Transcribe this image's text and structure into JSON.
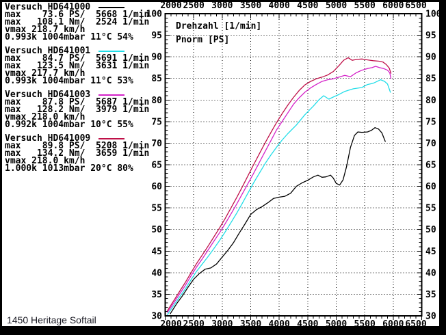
{
  "footer": {
    "label": "1450 Heritage Softail"
  },
  "panel": {
    "tests": [
      {
        "title": "Versuch HD641000",
        "color": "#000000",
        "rows": [
          "max    73.6 PS/  5668 1/min",
          "max   108.1 Nm/  2524 1/min",
          "vmax 218.7 km/h",
          "0.993k 1004mbar 11°C 54%"
        ]
      },
      {
        "title": "Versuch HD641001",
        "color": "#20dde8",
        "rows": [
          "max    84.7 PS/  5691 1/min",
          "max   123.5 Nm/  3631 1/min",
          "vmax 217.7 km/h",
          "0.993k 1004mbar 11°C 53%"
        ]
      },
      {
        "title": "Versuch HD641003",
        "color": "#d420c8",
        "rows": [
          "max    87.8 PS/  5687 1/min",
          "max   128.2 Nm/  3979 1/min",
          "vmax 218.0 km/h",
          "0.992k 1004mbar 10°C 55%"
        ]
      },
      {
        "title": "Versuch HD641009",
        "color": "#bf1048",
        "rows": [
          "max    89.8 PS/  5208 1/min",
          "max   134.2 Nm/  3659 1/min",
          "vmax 218.0 km/h",
          "1.000k 1013mbar 20°C 80%"
        ]
      }
    ]
  },
  "chart_data": {
    "type": "line",
    "title": "",
    "xlabel": "Drehzahl [1/min]",
    "ylabel": "Pnorm [PS]",
    "xlim": [
      2000,
      6500
    ],
    "ylim": [
      30,
      100
    ],
    "x_major_step": 500,
    "x_minor_step": 100,
    "y_major_step": 5,
    "y_minor_step": 1,
    "grid": "dotted-at-major-ticks",
    "x_labels_position": "top-and-bottom",
    "y_labels_position": "left-and-right",
    "legend_position": "left-text-panel",
    "series": [
      {
        "name": "HD641000",
        "color": "#000000",
        "points": [
          [
            2090,
            30.5
          ],
          [
            2200,
            32.8
          ],
          [
            2300,
            34.6
          ],
          [
            2400,
            36.6
          ],
          [
            2500,
            38.5
          ],
          [
            2600,
            39.8
          ],
          [
            2700,
            40.8
          ],
          [
            2800,
            41.1
          ],
          [
            2900,
            42
          ],
          [
            3000,
            43.6
          ],
          [
            3100,
            45.2
          ],
          [
            3200,
            47
          ],
          [
            3300,
            49.2
          ],
          [
            3400,
            51.3
          ],
          [
            3500,
            53.5
          ],
          [
            3600,
            54.6
          ],
          [
            3700,
            55.3
          ],
          [
            3800,
            56.2
          ],
          [
            3900,
            57.2
          ],
          [
            4000,
            57.5
          ],
          [
            4100,
            57.7
          ],
          [
            4200,
            58.4
          ],
          [
            4300,
            60
          ],
          [
            4400,
            60.8
          ],
          [
            4500,
            61.4
          ],
          [
            4600,
            62.2
          ],
          [
            4680,
            62.6
          ],
          [
            4750,
            62.1
          ],
          [
            4820,
            62.2
          ],
          [
            4900,
            62.6
          ],
          [
            4950,
            61.9
          ],
          [
            5000,
            60.7
          ],
          [
            5060,
            60.3
          ],
          [
            5120,
            61.5
          ],
          [
            5180,
            64.5
          ],
          [
            5250,
            69
          ],
          [
            5320,
            71.8
          ],
          [
            5380,
            72.6
          ],
          [
            5450,
            72.5
          ],
          [
            5550,
            72.6
          ],
          [
            5620,
            73
          ],
          [
            5680,
            73.6
          ],
          [
            5740,
            73.3
          ],
          [
            5800,
            72.4
          ],
          [
            5860,
            70.4
          ]
        ]
      },
      {
        "name": "HD641001",
        "color": "#20dde8",
        "points": [
          [
            2040,
            30.3
          ],
          [
            2150,
            32.4
          ],
          [
            2250,
            34.3
          ],
          [
            2350,
            36.2
          ],
          [
            2450,
            38.3
          ],
          [
            2550,
            40.3
          ],
          [
            2650,
            42
          ],
          [
            2750,
            43.7
          ],
          [
            2850,
            45.5
          ],
          [
            2950,
            47.4
          ],
          [
            3050,
            49.4
          ],
          [
            3150,
            51.5
          ],
          [
            3250,
            53.7
          ],
          [
            3350,
            56
          ],
          [
            3450,
            58.4
          ],
          [
            3550,
            60.8
          ],
          [
            3650,
            63
          ],
          [
            3750,
            65.2
          ],
          [
            3850,
            67.2
          ],
          [
            3950,
            69
          ],
          [
            4050,
            70.7
          ],
          [
            4150,
            72.2
          ],
          [
            4300,
            74.2
          ],
          [
            4450,
            76.6
          ],
          [
            4600,
            78.6
          ],
          [
            4700,
            80.1
          ],
          [
            4780,
            81
          ],
          [
            4870,
            80.2
          ],
          [
            4950,
            80.7
          ],
          [
            5050,
            81.3
          ],
          [
            5150,
            82
          ],
          [
            5300,
            82.6
          ],
          [
            5450,
            82.9
          ],
          [
            5550,
            83.6
          ],
          [
            5650,
            83.9
          ],
          [
            5700,
            84.2
          ],
          [
            5780,
            84.7
          ],
          [
            5850,
            84.3
          ],
          [
            5900,
            83.7
          ],
          [
            5950,
            81.8
          ]
        ]
      },
      {
        "name": "HD641003",
        "color": "#d420c8",
        "points": [
          [
            2040,
            30.8
          ],
          [
            2150,
            33
          ],
          [
            2250,
            35
          ],
          [
            2350,
            37
          ],
          [
            2450,
            39.2
          ],
          [
            2550,
            41.3
          ],
          [
            2650,
            43.2
          ],
          [
            2750,
            45.2
          ],
          [
            2850,
            47.2
          ],
          [
            2950,
            49.2
          ],
          [
            3050,
            51.3
          ],
          [
            3150,
            53.5
          ],
          [
            3250,
            55.8
          ],
          [
            3350,
            58.2
          ],
          [
            3450,
            60.6
          ],
          [
            3550,
            63
          ],
          [
            3650,
            65.5
          ],
          [
            3750,
            68
          ],
          [
            3850,
            70.5
          ],
          [
            3950,
            73
          ],
          [
            4050,
            75
          ],
          [
            4150,
            77
          ],
          [
            4250,
            79
          ],
          [
            4350,
            80.5
          ],
          [
            4450,
            81.8
          ],
          [
            4550,
            82.8
          ],
          [
            4650,
            83.6
          ],
          [
            4750,
            84.3
          ],
          [
            4850,
            84.7
          ],
          [
            4950,
            84.9
          ],
          [
            5050,
            85.3
          ],
          [
            5150,
            85.7
          ],
          [
            5250,
            85.4
          ],
          [
            5350,
            86.3
          ],
          [
            5450,
            86.9
          ],
          [
            5550,
            87.3
          ],
          [
            5630,
            87.5
          ],
          [
            5690,
            87.8
          ],
          [
            5760,
            87.5
          ],
          [
            5830,
            87.3
          ],
          [
            5900,
            86.9
          ],
          [
            5940,
            86.3
          ],
          [
            5960,
            85
          ]
        ]
      },
      {
        "name": "HD641009",
        "color": "#bf1048",
        "points": [
          [
            2040,
            31.2
          ],
          [
            2150,
            33.5
          ],
          [
            2250,
            35.6
          ],
          [
            2350,
            37.7
          ],
          [
            2450,
            39.9
          ],
          [
            2550,
            42.1
          ],
          [
            2650,
            44.1
          ],
          [
            2750,
            46.1
          ],
          [
            2850,
            48.2
          ],
          [
            2950,
            50.3
          ],
          [
            3050,
            52.5
          ],
          [
            3150,
            54.9
          ],
          [
            3250,
            57.3
          ],
          [
            3350,
            59.8
          ],
          [
            3450,
            62.4
          ],
          [
            3550,
            65
          ],
          [
            3650,
            67.5
          ],
          [
            3750,
            70
          ],
          [
            3850,
            72.4
          ],
          [
            3950,
            74.7
          ],
          [
            4050,
            76.8
          ],
          [
            4150,
            78.8
          ],
          [
            4250,
            80.6
          ],
          [
            4350,
            82.2
          ],
          [
            4450,
            83.5
          ],
          [
            4550,
            84.3
          ],
          [
            4650,
            84.9
          ],
          [
            4750,
            85.3
          ],
          [
            4850,
            85.8
          ],
          [
            4950,
            86.6
          ],
          [
            5050,
            88
          ],
          [
            5130,
            89.2
          ],
          [
            5210,
            89.8
          ],
          [
            5280,
            89.2
          ],
          [
            5360,
            89.4
          ],
          [
            5450,
            89.5
          ],
          [
            5550,
            89.3
          ],
          [
            5650,
            89.1
          ],
          [
            5750,
            89
          ],
          [
            5820,
            88.8
          ],
          [
            5880,
            88.2
          ],
          [
            5930,
            87.4
          ],
          [
            5960,
            86.2
          ]
        ]
      }
    ]
  }
}
